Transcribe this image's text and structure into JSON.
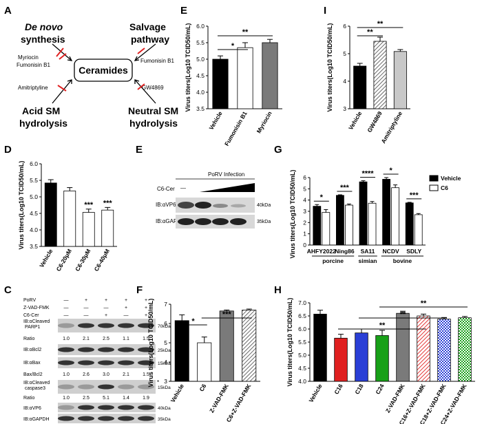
{
  "panel_letters": [
    "A",
    "E",
    "I",
    "D",
    "E",
    "G",
    "C",
    "F",
    "H"
  ],
  "panelA": {
    "de_novo": "De novo",
    "synthesis": "synthesis",
    "salvage1": "Salvage",
    "salvage2": "pathway",
    "inhib1": "Myriocin",
    "inhib2": "Fumonisin B1",
    "inhib3": "Fumonisin B1",
    "inhib4": "Amitriptyline",
    "inhib5": "GW4869",
    "center": "Ceramides",
    "acid1": "Acid SM",
    "acid2": "hydrolysis",
    "neutral1": "Neutral SM",
    "neutral2": "hydrolysis"
  },
  "panelE_blot": {
    "title": "PoRV Infection",
    "row_label": "C6-Cer",
    "dash": "—",
    "blot1": "IB:αVP6",
    "blot2": "IB:αGAPDH",
    "mw1": "40kDa",
    "mw2": "35kDa"
  },
  "panelC": {
    "rows": [
      "PoRV",
      "Z-VAD-FMK",
      "C6-Cer"
    ],
    "signs": [
      [
        "—",
        "+",
        "+",
        "+",
        "+"
      ],
      [
        "—",
        "—",
        "—",
        "+",
        "+"
      ],
      [
        "—",
        "—",
        "+",
        "—",
        "+"
      ]
    ],
    "blots": [
      {
        "label1": "IB:αCleaved",
        "label2": "PARP1",
        "mw": "70kDa"
      },
      {
        "label1": "IB:αBcl2",
        "label2": "",
        "mw": "25kDa"
      },
      {
        "label1": "IB:αBax",
        "label2": "",
        "mw": "15kDa"
      },
      {
        "label1": "IB:αCleaved",
        "label2": "caspase3",
        "mw": "15kDa"
      },
      {
        "label1": "IB:αVP6",
        "label2": "",
        "mw": "40kDa"
      },
      {
        "label1": "IB:αGAPDH",
        "label2": "",
        "mw": "35kDa"
      }
    ],
    "ratio_label": "Ratio",
    "baxbcl_label": "Bax/Bcl2",
    "ratio1": [
      "1.0",
      "2.1",
      "2.5",
      "1.1",
      "1.5"
    ],
    "ratio2": [
      "1.0",
      "2.6",
      "3.0",
      "2.1",
      "1.5"
    ],
    "ratio3": [
      "1.0",
      "2.5",
      "5.1",
      "1.4",
      "1.9"
    ],
    "asterisk": "*"
  },
  "chart_data": [
    {
      "panel": "E",
      "type": "bar",
      "categories": [
        "Vehicle",
        "Fumonisin B1",
        "Myriocin"
      ],
      "values": [
        5.0,
        5.35,
        5.5
      ],
      "errors": [
        0.1,
        0.15,
        0.1
      ],
      "fills": [
        "black",
        "white",
        "gray"
      ],
      "ylabel": "Virus titers(Log10 TCID50/mL)",
      "ylim": [
        3.5,
        6.0
      ],
      "yticks": [
        "3.5",
        "4.0",
        "4.5",
        "5.0",
        "5.5",
        "6.0"
      ],
      "sig": [
        {
          "from": 0,
          "to": 1,
          "label": "*"
        },
        {
          "from": 0,
          "to": 2,
          "label": "**"
        }
      ]
    },
    {
      "panel": "I",
      "type": "bar",
      "categories": [
        "Vehicle",
        "GW4869",
        "Amitriptyline"
      ],
      "values": [
        4.55,
        5.45,
        5.08
      ],
      "errors": [
        0.1,
        0.15,
        0.07
      ],
      "fills": [
        "black",
        "hatch",
        "lightgray"
      ],
      "ylabel": "Virus titers(Log10 TCID50/mL)",
      "ylim": [
        3,
        6
      ],
      "yticks": [
        "3",
        "4",
        "5",
        "6"
      ],
      "sig": [
        {
          "from": 0,
          "to": 1,
          "label": "**"
        },
        {
          "from": 0,
          "to": 2,
          "label": "**"
        }
      ]
    },
    {
      "panel": "D",
      "type": "bar",
      "categories": [
        "Vehicle",
        "C6-20μM",
        "C6-30μM",
        "C6-40μM"
      ],
      "values": [
        5.42,
        5.18,
        4.53,
        4.6
      ],
      "errors": [
        0.1,
        0.1,
        0.1,
        0.08
      ],
      "fills": [
        "black",
        "white",
        "white",
        "white"
      ],
      "ylabel": "Virus titers(Log10 TCID50/mL)",
      "ylim": [
        3.5,
        6.0
      ],
      "yticks": [
        "3.5",
        "4.0",
        "4.5",
        "5.0",
        "5.5",
        "6.0"
      ],
      "stars": [
        "",
        "",
        "***",
        "***"
      ]
    },
    {
      "panel": "G",
      "type": "bar",
      "groups": [
        "AHFY2022",
        "Ning86",
        "SA11",
        "NCDV",
        "SDLY"
      ],
      "series": [
        {
          "name": "Vehicle",
          "values": [
            3.45,
            4.42,
            5.62,
            5.85,
            3.75
          ]
        },
        {
          "name": "C6",
          "values": [
            2.9,
            3.55,
            3.72,
            5.1,
            2.7
          ]
        }
      ],
      "errors": [
        [
          0.15,
          0.25
        ],
        [
          0.05,
          0.1
        ],
        [
          0.1,
          0.15
        ],
        [
          0.15,
          0.25
        ],
        [
          0.05,
          0.1
        ]
      ],
      "hosts": [
        "porcine",
        "simian",
        "bovine"
      ],
      "ylabel": "Virus titers(Log10 TCID50/mL)",
      "ylim": [
        0,
        6
      ],
      "yticks": [
        "0",
        "1",
        "2",
        "3",
        "4",
        "5",
        "6"
      ],
      "stars": [
        "*",
        "***",
        "****",
        "*",
        "***"
      ]
    },
    {
      "panel": "F",
      "type": "bar",
      "categories": [
        "Vehicle",
        "C6",
        "Z-VAD-FMK",
        "C6+Z-VAD-FMK"
      ],
      "values": [
        6.15,
        5.0,
        6.65,
        6.7
      ],
      "errors": [
        0.3,
        0.3,
        0.05,
        0.05
      ],
      "fills": [
        "black",
        "white",
        "gray",
        "hatch"
      ],
      "ylabel": "Virus titers(Log10 TCID50/mL)",
      "ylim": [
        3,
        7
      ],
      "yticks": [
        "3",
        "4",
        "5",
        "6",
        "7"
      ],
      "sig": [
        {
          "from": 0,
          "to": 1,
          "label": "*"
        },
        {
          "from": 1,
          "to": 3,
          "label": "***"
        }
      ]
    },
    {
      "panel": "H",
      "type": "bar",
      "categories": [
        "Vehicle",
        "C16",
        "C18",
        "C24",
        "Z-VAD-FMK",
        "C16+Z-VAD-FMK",
        "C18+Z-VAD-FMK",
        "C24+Z-VAD-FMK"
      ],
      "values": [
        6.57,
        5.65,
        5.85,
        5.75,
        6.6,
        6.5,
        6.38,
        6.43
      ],
      "errors": [
        0.15,
        0.15,
        0.15,
        0.2,
        0.08,
        0.07,
        0.06,
        0.05
      ],
      "fills": [
        "black",
        "red",
        "blue",
        "green",
        "gray",
        "redhatch",
        "bluehatch",
        "greenhatch"
      ],
      "ylabel": "Virus titers(Log10 TCID50/mL)",
      "ylim": [
        4.0,
        7.0
      ],
      "yticks": [
        "4.0",
        "4.5",
        "5.0",
        "5.5",
        "6.0",
        "6.5",
        "7.0"
      ],
      "sig": [
        {
          "from": 1,
          "to": 5,
          "label": "**"
        },
        {
          "from": 2,
          "to": 6,
          "label": "**"
        },
        {
          "from": 3,
          "to": 7,
          "label": "**"
        }
      ]
    }
  ]
}
